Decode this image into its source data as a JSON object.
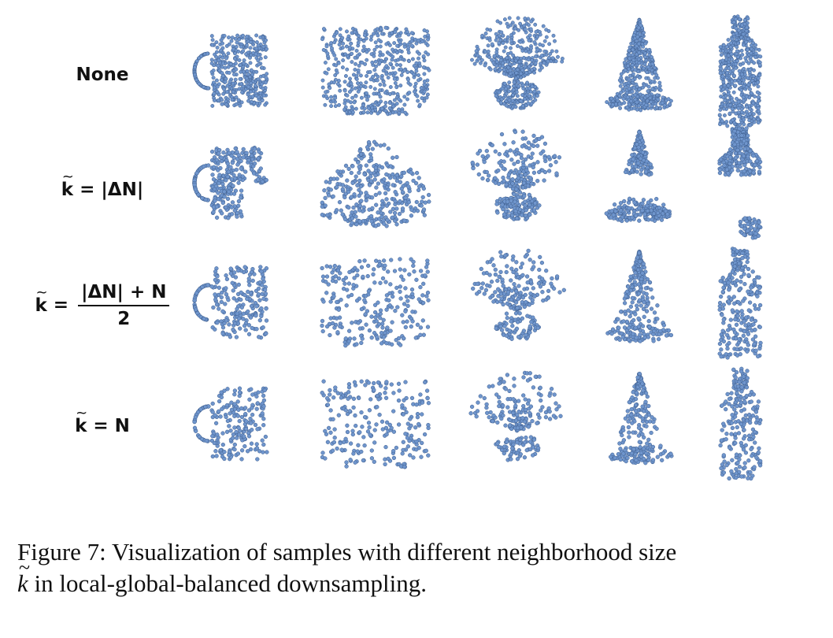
{
  "rows": [
    {
      "label": "None"
    },
    {
      "label_prefix": "k",
      "label_suffix": " = |ΔN|"
    },
    {
      "label_prefix": "k",
      "label_eq": " = ",
      "frac_num": "|ΔN| + N",
      "frac_den": "2"
    },
    {
      "label_prefix": "k",
      "label_suffix": " = N"
    }
  ],
  "objects": [
    "mug",
    "monitor",
    "plant",
    "cone",
    "bottle"
  ],
  "point_color": "#6f95cc",
  "point_edge": "#3f5f8f",
  "caption": {
    "line1": "Figure 7: Visualization of samples with different neighborhood size",
    "var": "k",
    "line2": " in local-global-balanced downsampling."
  }
}
